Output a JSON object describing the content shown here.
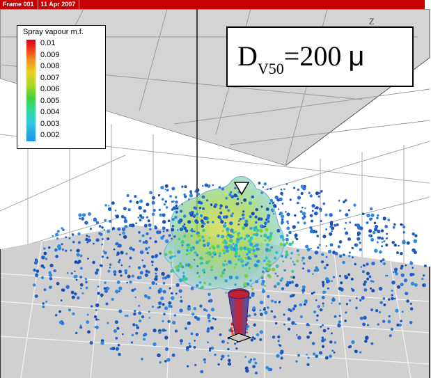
{
  "title_bar": {
    "frame_label": "Frame 001",
    "date_label": "11 Apr 2007"
  },
  "legend": {
    "title": "Spray vapour m.f.",
    "ticks": [
      "0.01",
      "0.009",
      "0.008",
      "0.007",
      "0.006",
      "0.005",
      "0.004",
      "0.003",
      "0.002"
    ]
  },
  "axis": {
    "z_label": "Z"
  },
  "annotation": {
    "d_letter": "D",
    "subscript": "V50",
    "value": "=200 ",
    "unit": "μ"
  },
  "colors": {
    "title_bar": "#c80000",
    "floor": "#cfcfcf",
    "ceiling": "#d0d0d0",
    "cloud": "#9ed8c0",
    "droplet_main": "#1f5fc8"
  }
}
